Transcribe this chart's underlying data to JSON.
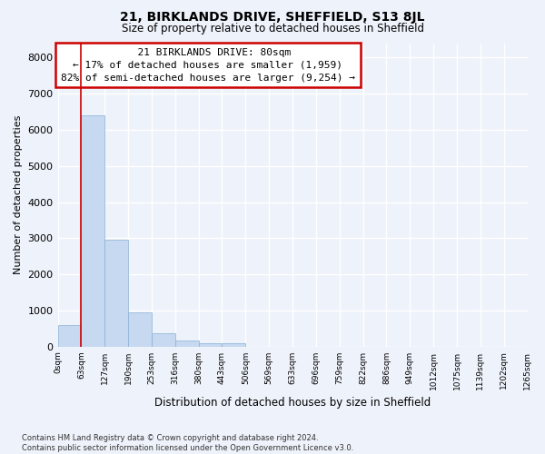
{
  "title_line1": "21, BIRKLANDS DRIVE, SHEFFIELD, S13 8JL",
  "title_line2": "Size of property relative to detached houses in Sheffield",
  "xlabel": "Distribution of detached houses by size in Sheffield",
  "ylabel": "Number of detached properties",
  "bin_labels": [
    "0sqm",
    "63sqm",
    "127sqm",
    "190sqm",
    "253sqm",
    "316sqm",
    "380sqm",
    "443sqm",
    "506sqm",
    "569sqm",
    "633sqm",
    "696sqm",
    "759sqm",
    "822sqm",
    "886sqm",
    "949sqm",
    "1012sqm",
    "1075sqm",
    "1139sqm",
    "1202sqm",
    "1265sqm"
  ],
  "bar_heights": [
    600,
    6400,
    2950,
    950,
    370,
    170,
    100,
    85,
    0,
    0,
    0,
    0,
    0,
    0,
    0,
    0,
    0,
    0,
    0,
    0
  ],
  "bar_color": "#c6d9f0",
  "bar_edge_color": "#8ab0d4",
  "property_line_x": 1.0,
  "annotation_text": "  21 BIRKLANDS DRIVE: 80sqm\n← 17% of detached houses are smaller (1,959)\n82% of semi-detached houses are larger (9,254) →",
  "annotation_box_color": "#ffffff",
  "annotation_box_edge_color": "#cc0000",
  "vline_color": "#cc0000",
  "ylim": [
    0,
    8400
  ],
  "yticks": [
    0,
    1000,
    2000,
    3000,
    4000,
    5000,
    6000,
    7000,
    8000
  ],
  "footnote": "Contains HM Land Registry data © Crown copyright and database right 2024.\nContains public sector information licensed under the Open Government Licence v3.0.",
  "background_color": "#eef2fa",
  "grid_color": "#ffffff",
  "n_bins": 20
}
